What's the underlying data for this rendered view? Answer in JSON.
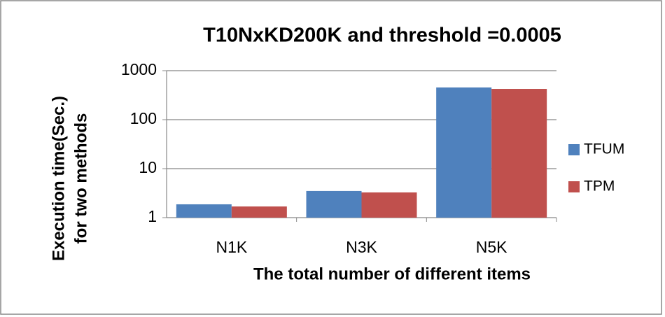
{
  "chart_data": {
    "type": "bar",
    "title": "T10NxKD200K and threshold =0.0005",
    "xlabel": "The total number of different items",
    "ylabel": [
      "Execution time(Sec.)",
      "for two methods"
    ],
    "categories": [
      "N1K",
      "N3K",
      "N5K"
    ],
    "series": [
      {
        "name": "TFUM",
        "color": "#4f81bd",
        "values": [
          1.87,
          3.5,
          454
        ]
      },
      {
        "name": "TPM",
        "color": "#c0504d",
        "values": [
          1.69,
          3.27,
          425
        ]
      }
    ],
    "ylim": [
      1,
      1000
    ],
    "yticks": [
      1,
      10,
      100,
      1000
    ],
    "log_scale": true,
    "grid": true,
    "legend": "right"
  }
}
